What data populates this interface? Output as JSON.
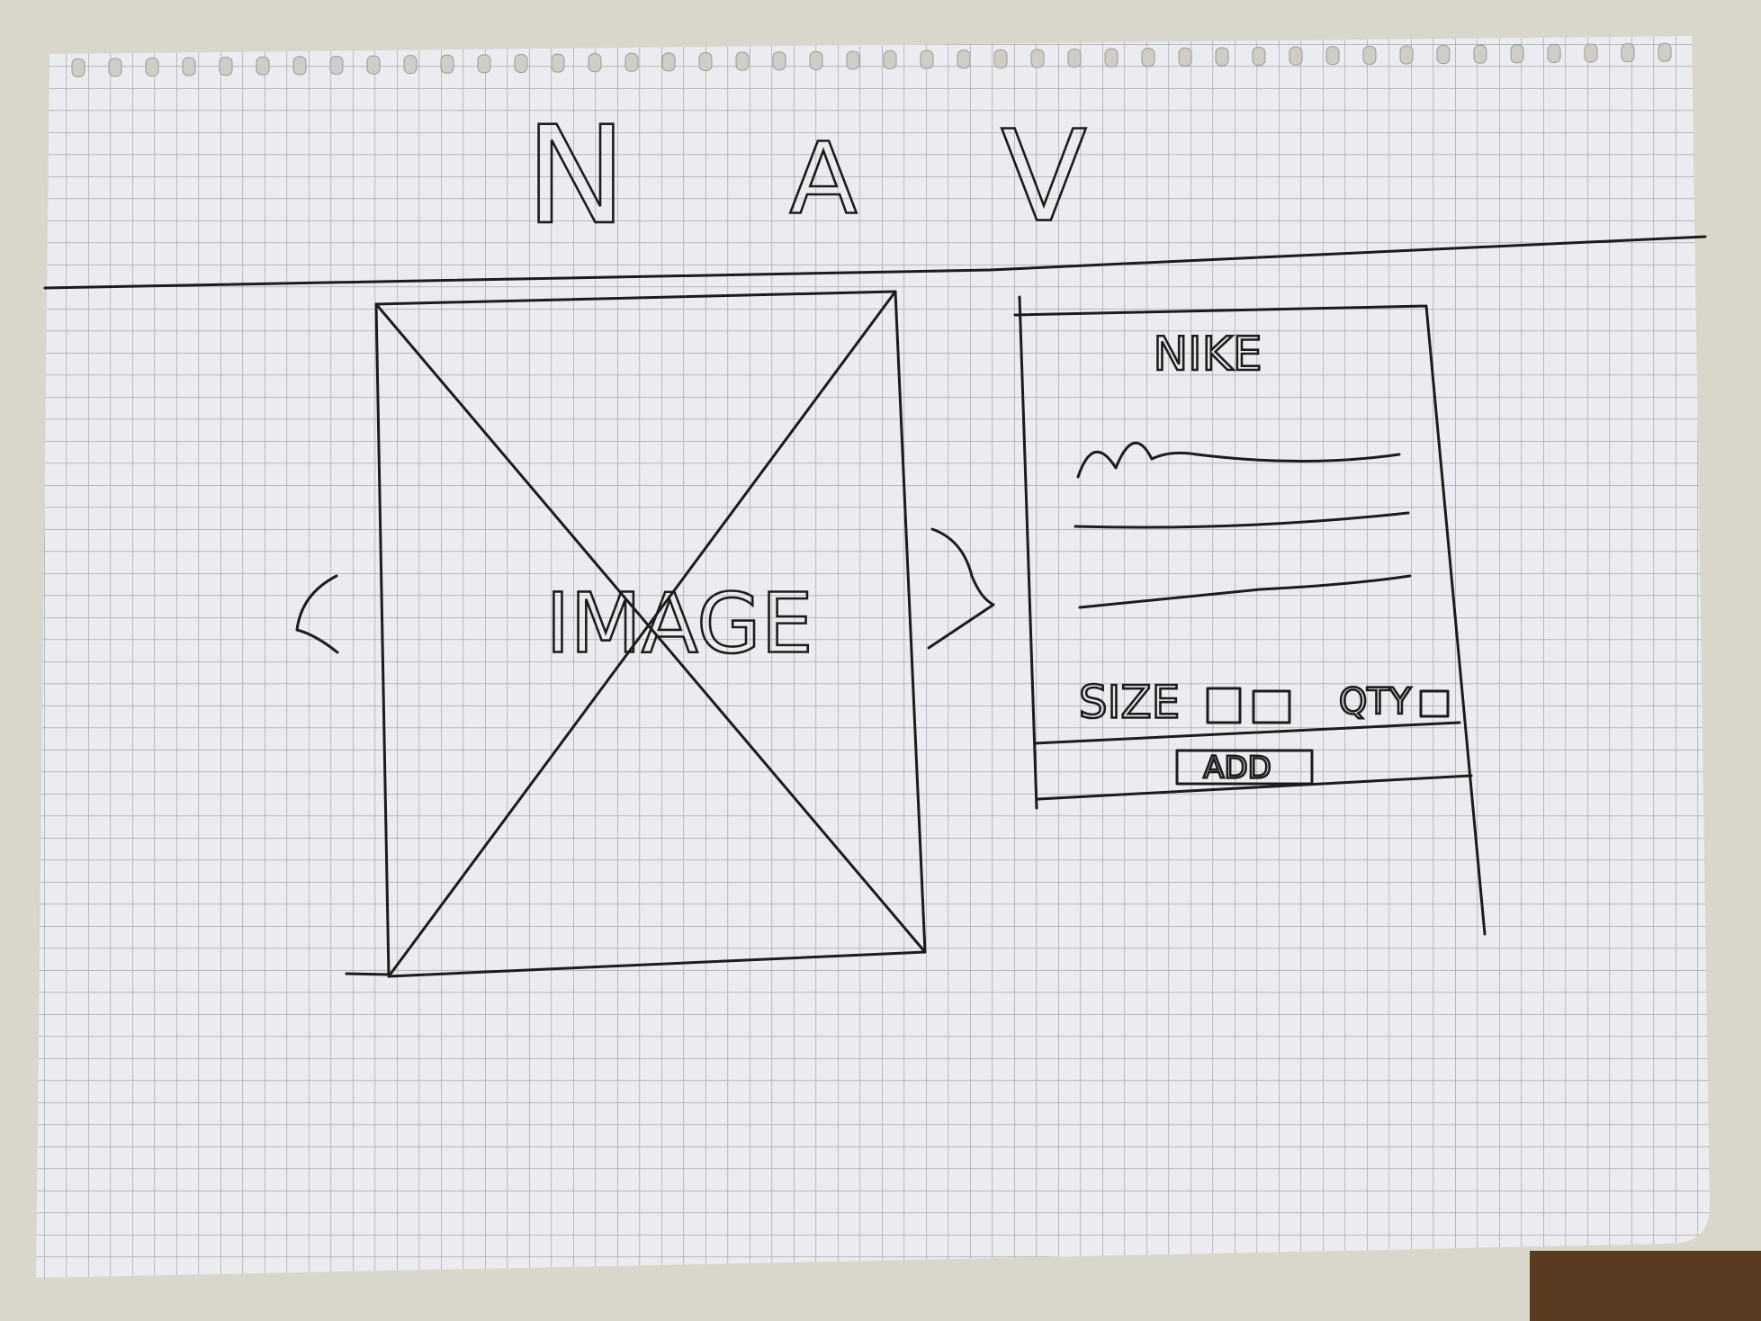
{
  "nav": {
    "letters": [
      "N",
      "A",
      "V"
    ]
  },
  "image": {
    "label": "IMAGE"
  },
  "product": {
    "title": "NIKE",
    "size_label": "SIZE",
    "qty_label": "QTY",
    "button": "ADD"
  }
}
